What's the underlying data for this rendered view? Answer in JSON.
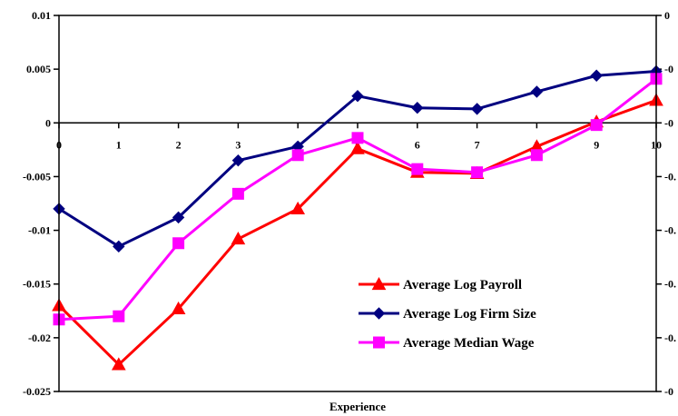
{
  "chart_data": {
    "type": "line",
    "title": "",
    "xlabel": "Experience",
    "ylabel": "",
    "x": [
      0,
      1,
      2,
      3,
      4,
      5,
      6,
      7,
      8,
      9,
      10
    ],
    "xlim": [
      0,
      10
    ],
    "ylim": [
      -0.025,
      0.01
    ],
    "y_ticks": [
      "0.01",
      "0.005",
      "0",
      "-0.005",
      "-0.01",
      "-0.015",
      "-0.02",
      "-0.025"
    ],
    "y_tick_values": [
      0.01,
      0.005,
      0,
      -0.005,
      -0.01,
      -0.015,
      -0.02,
      -0.025
    ],
    "x_ticks": [
      "0",
      "1",
      "2",
      "3",
      "4",
      "5",
      "6",
      "7",
      "8",
      "9",
      "10"
    ],
    "right_axis_ticks": [
      "0",
      "-0",
      "-0",
      "-0.",
      "-0.",
      "-0.",
      "-0.",
      "-0"
    ],
    "grid": false,
    "legend_position": "bottom-right",
    "series": [
      {
        "name": "Average Log Payroll",
        "color": "#ff0000",
        "marker": "triangle",
        "values": [
          -0.017,
          -0.0225,
          -0.0173,
          -0.0108,
          -0.008,
          -0.0024,
          -0.0046,
          -0.0047,
          -0.0022,
          0.0001,
          0.0021
        ]
      },
      {
        "name": "Average Log Firm Size",
        "color": "#000080",
        "marker": "diamond",
        "values": [
          -0.008,
          -0.0115,
          -0.0088,
          -0.0035,
          -0.0022,
          0.0025,
          0.0014,
          0.0013,
          0.0029,
          0.0044,
          0.0048
        ]
      },
      {
        "name": "Average Median Wage",
        "color": "#ff00ff",
        "marker": "square",
        "values": [
          -0.0183,
          -0.018,
          -0.0112,
          -0.0066,
          -0.003,
          -0.0014,
          -0.0043,
          -0.0046,
          -0.003,
          -0.0002,
          0.0041
        ]
      }
    ]
  }
}
